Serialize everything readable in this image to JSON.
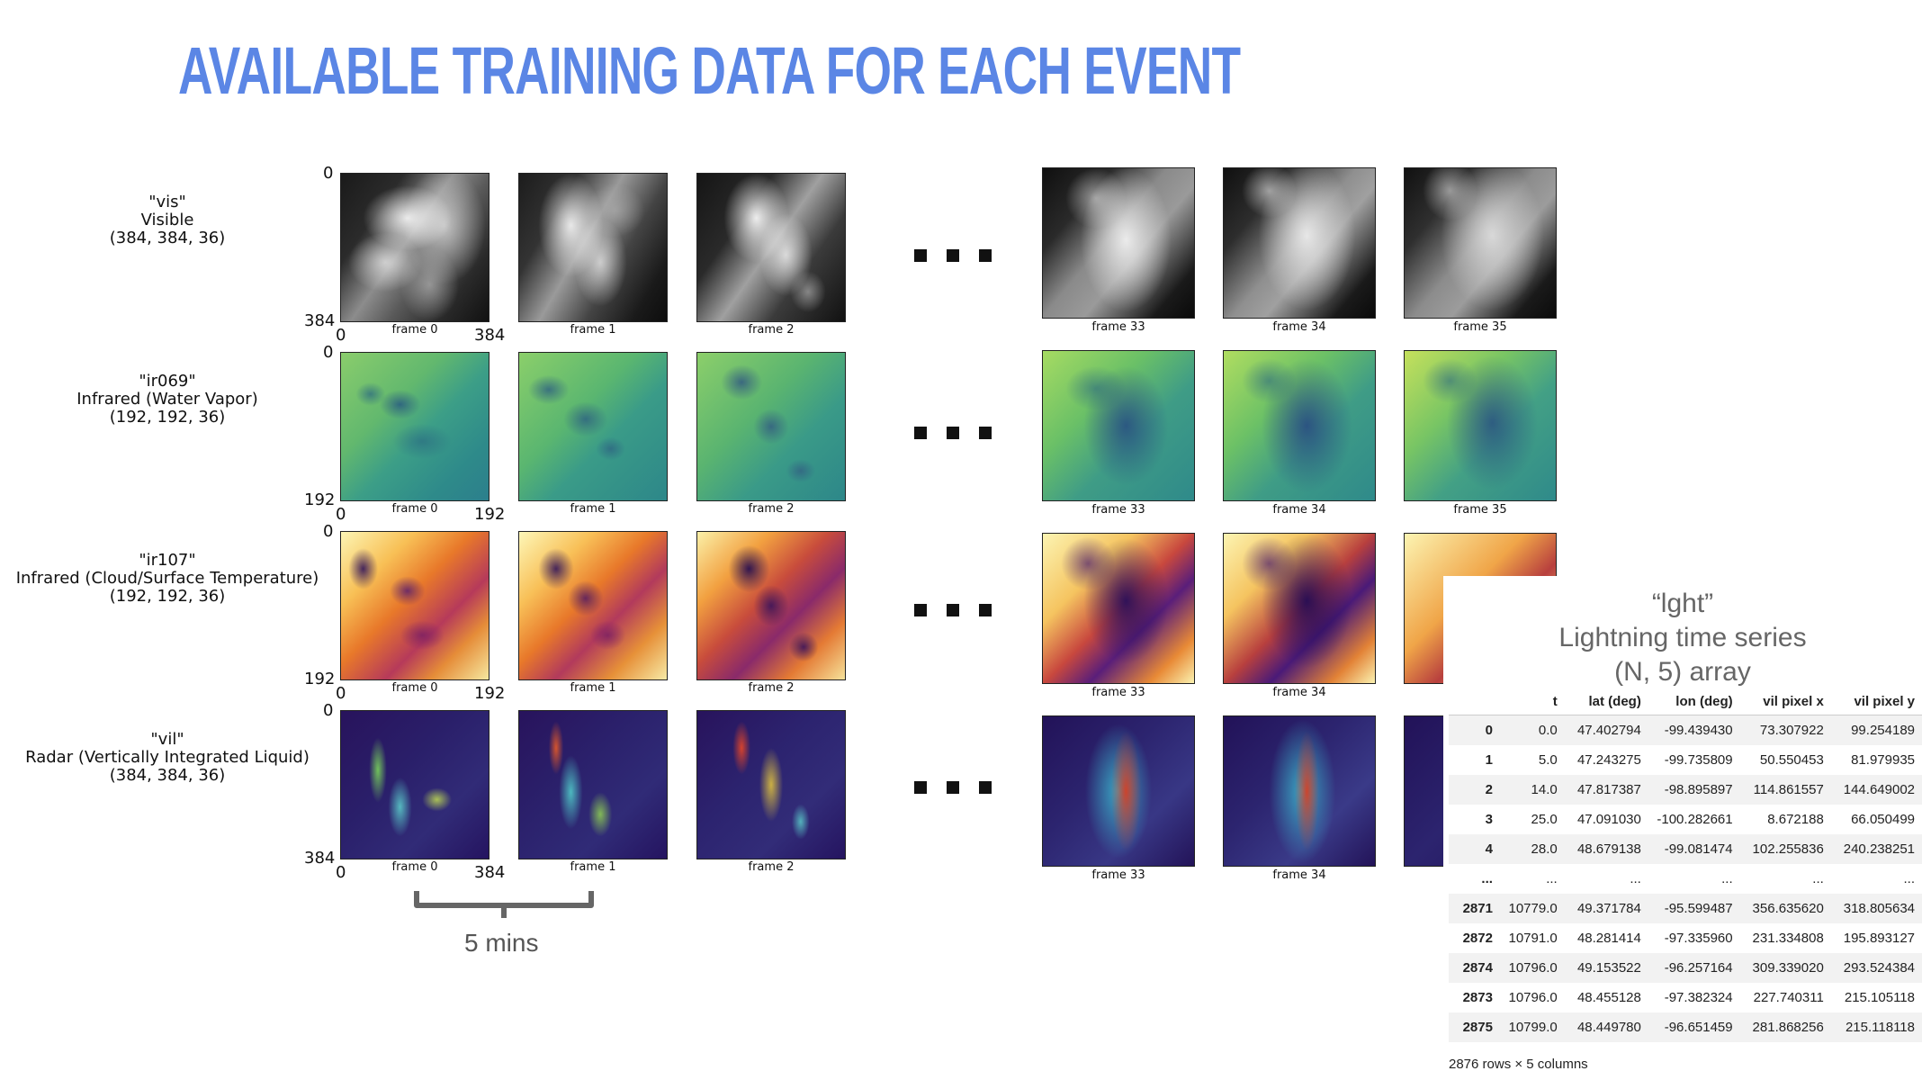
{
  "title": "AVAILABLE TRAINING DATA  FOR EACH EVENT",
  "rows": [
    {
      "key": "\"vis\"",
      "desc": "Visible",
      "shape": "(384, 384, 36)",
      "max_tick": "384",
      "zero_tick": "0"
    },
    {
      "key": "\"ir069\"",
      "desc": "Infrared (Water Vapor)",
      "shape": "(192, 192, 36)",
      "max_tick": "192",
      "zero_tick": "0"
    },
    {
      "key": "\"ir107\"",
      "desc": "Infrared (Cloud/Surface Temperature)",
      "shape": "(192, 192, 36)",
      "max_tick": "192",
      "zero_tick": "0"
    },
    {
      "key": "\"vil\"",
      "desc": "Radar (Vertically Integrated Liquid)",
      "shape": "(384, 384, 36)",
      "max_tick": "384",
      "zero_tick": "0"
    }
  ],
  "frames_early": [
    "frame 0",
    "frame 1",
    "frame 2"
  ],
  "frames_late": [
    "frame 33",
    "frame 34",
    "frame 35"
  ],
  "bracket_label": "5 mins",
  "lght": {
    "key": "“lght”",
    "desc": "Lightning time series",
    "shape": "(N, 5) array",
    "columns": [
      "",
      "t",
      "lat (deg)",
      "lon (deg)",
      "vil pixel x",
      "vil pixel y"
    ],
    "rows": [
      [
        "0",
        "0.0",
        "47.402794",
        "-99.439430",
        "73.307922",
        "99.254189"
      ],
      [
        "1",
        "5.0",
        "47.243275",
        "-99.735809",
        "50.550453",
        "81.979935"
      ],
      [
        "2",
        "14.0",
        "47.817387",
        "-98.895897",
        "114.861557",
        "144.649002"
      ],
      [
        "3",
        "25.0",
        "47.091030",
        "-100.282661",
        "8.672188",
        "66.050499"
      ],
      [
        "4",
        "28.0",
        "48.679138",
        "-99.081474",
        "102.255836",
        "240.238251"
      ],
      [
        "...",
        "...",
        "...",
        "...",
        "...",
        "..."
      ],
      [
        "2871",
        "10779.0",
        "49.371784",
        "-95.599487",
        "356.635620",
        "318.805634"
      ],
      [
        "2872",
        "10791.0",
        "48.281414",
        "-97.335960",
        "231.334808",
        "195.893127"
      ],
      [
        "2874",
        "10796.0",
        "49.153522",
        "-96.257164",
        "309.339020",
        "293.524384"
      ],
      [
        "2873",
        "10796.0",
        "48.455128",
        "-97.382324",
        "227.740311",
        "215.105118"
      ],
      [
        "2875",
        "10799.0",
        "48.449780",
        "-96.651459",
        "281.868256",
        "215.118118"
      ]
    ],
    "footer": "2876 rows × 5 columns"
  },
  "colors": {
    "title": "#5b86e5",
    "bracket": "#666666"
  }
}
